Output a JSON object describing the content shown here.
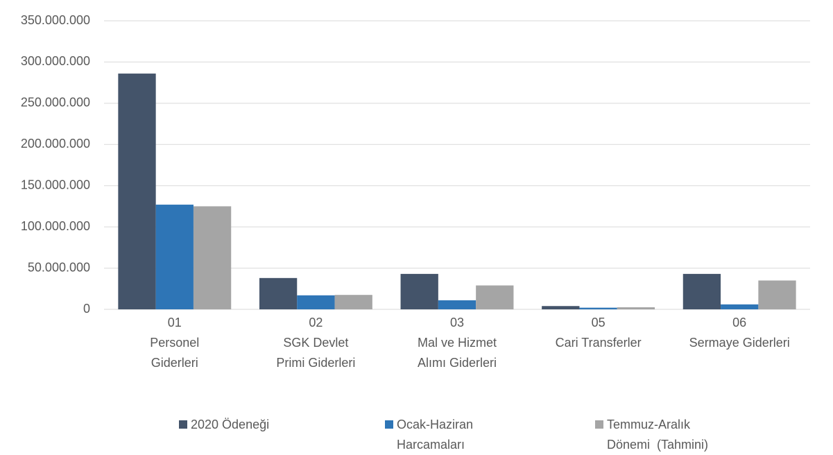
{
  "chart_data": {
    "type": "bar",
    "categories": [
      [
        "01",
        "Personel",
        "Giderleri"
      ],
      [
        "02",
        "SGK Devlet",
        "Primi Giderleri"
      ],
      [
        "03",
        "Mal ve Hizmet",
        "Alımı Giderleri"
      ],
      [
        "05",
        "Cari Transferler"
      ],
      [
        "06",
        "Sermaye Giderleri"
      ]
    ],
    "series": [
      {
        "name": "2020 Ödeneği",
        "color": "#44546a",
        "values": [
          286000000,
          38000000,
          43000000,
          4000000,
          43000000
        ]
      },
      {
        "name": "Ocak-Haziran Harcamaları",
        "color": "#2e75b6",
        "values": [
          127000000,
          17000000,
          11000000,
          2000000,
          6000000
        ]
      },
      {
        "name": "Temmuz-Aralık Dönemi  (Tahmini)",
        "color": "#a5a5a5",
        "values": [
          125000000,
          17500000,
          29000000,
          2500000,
          35000000
        ]
      }
    ],
    "ylim": [
      0,
      350000000
    ],
    "yticks": [
      0,
      {
        "value": 50000000,
        "label": "50.000.000"
      },
      {
        "value": 100000000,
        "label": "100.000.000"
      },
      {
        "value": 150000000,
        "label": "150.000.000"
      },
      {
        "value": 200000000,
        "label": "200.000.000"
      },
      {
        "value": 250000000,
        "label": "250.000.000"
      },
      {
        "value": 300000000,
        "label": "300.000.000"
      },
      {
        "value": 350000000,
        "label": "350.000.000"
      }
    ],
    "grid": true,
    "legend": "bottom"
  }
}
